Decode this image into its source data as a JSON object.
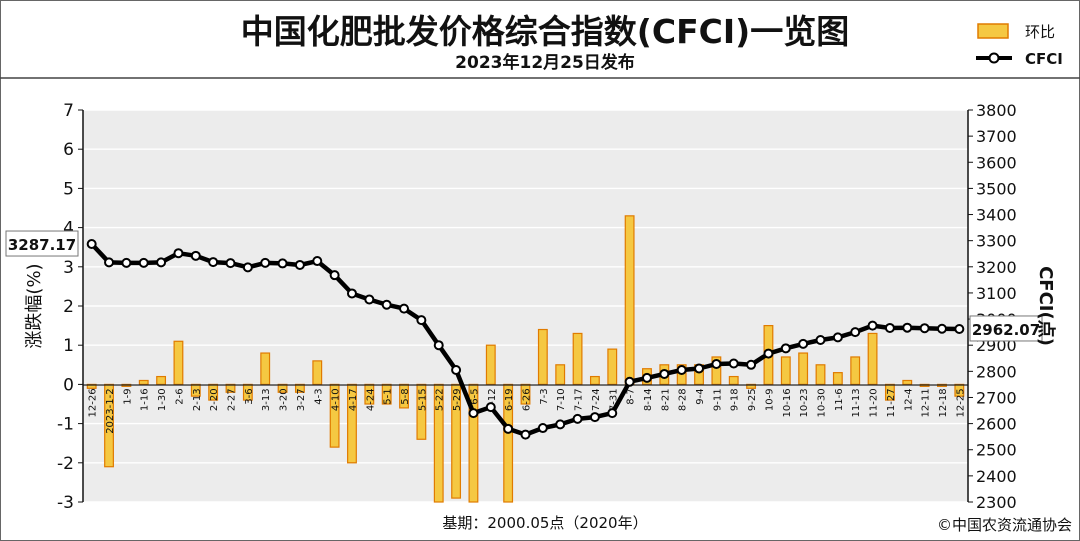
{
  "header": {
    "title": "中国化肥批发价格综合指数(CFCI)一览图",
    "date": "2023年12月25日发布"
  },
  "legend": {
    "bar_label": "环比",
    "line_label": "CFCI"
  },
  "footer": {
    "base_note": "基期：2000.05点（2020年）",
    "copyright": "©中国农资流通协会"
  },
  "colors": {
    "bar_fill": "#f5c842",
    "bar_stroke": "#e07b00",
    "line": "#000000",
    "marker_fill": "#ffffff",
    "plot_bg": "#ececec"
  },
  "chart_data": {
    "type": "bar+line",
    "x_tick_labels": [
      "12-26",
      "2023-1-2",
      "1-9",
      "1-16",
      "1-30",
      "2-6",
      "2-13",
      "2-20",
      "2-27",
      "3-6",
      "3-13",
      "3-20",
      "3-27",
      "4-3",
      "4-10",
      "4-17",
      "4-24",
      "5-1",
      "5-8",
      "5-15",
      "5-22",
      "5-29",
      "6-5",
      "6-12",
      "6-19",
      "6-26",
      "7-3",
      "7-10",
      "7-17",
      "7-24",
      "7-31",
      "8-7",
      "8-14",
      "8-21",
      "8-28",
      "9-4",
      "9-11",
      "9-18",
      "9-25",
      "10-9",
      "10-16",
      "10-23",
      "10-30",
      "11-6",
      "11-13",
      "11-20",
      "11-27",
      "12-4",
      "12-11",
      "12-18",
      "12-25"
    ],
    "ylabel_left": "涨跌幅(%)",
    "ylabel_right": "CFCI(点)",
    "ylim_left": [
      -3,
      7
    ],
    "ylim_right": [
      2300,
      3800
    ],
    "yticks_left": [
      "7",
      "6",
      "5",
      "4",
      "3",
      "2",
      "1",
      "0",
      "-1",
      "-2",
      "-3"
    ],
    "yticks_right": [
      "3800",
      "3700",
      "3600",
      "3500",
      "3400",
      "3300",
      "3200",
      "3100",
      "3000",
      "2900",
      "2800",
      "2700",
      "2600",
      "2500",
      "2400",
      "2300"
    ],
    "grid": true,
    "series": [
      {
        "name": "环比",
        "type": "bar",
        "axis": "left",
        "values": [
          -0.1,
          -2.1,
          -0.05,
          0.1,
          0.2,
          1.1,
          -0.3,
          -0.4,
          -0.2,
          -0.4,
          0.8,
          -0.2,
          -0.2,
          0.6,
          -1.6,
          -2.0,
          -0.5,
          -0.5,
          -0.6,
          -1.4,
          -3.0,
          -2.9,
          -3.0,
          1.0,
          -3.0,
          -0.5,
          1.4,
          0.5,
          1.3,
          0.2,
          0.9,
          4.3,
          0.4,
          0.5,
          0.5,
          0.5,
          0.7,
          0.2,
          -0.1,
          1.5,
          0.7,
          0.8,
          0.5,
          0.3,
          0.7,
          1.3,
          -0.4,
          0.1,
          -0.05,
          -0.05,
          -0.3
        ]
      },
      {
        "name": "CFCI",
        "type": "line",
        "axis": "right",
        "values": [
          3287.17,
          3217,
          3215,
          3215,
          3217,
          3252,
          3242,
          3218,
          3214,
          3198,
          3215,
          3213,
          3207,
          3222,
          3168,
          3098,
          3075,
          3055,
          3040,
          2996,
          2900,
          2805,
          2640,
          2663,
          2580,
          2558,
          2583,
          2597,
          2618,
          2625,
          2640,
          2760,
          2775,
          2790,
          2805,
          2811,
          2828,
          2830,
          2825,
          2868,
          2888,
          2905,
          2920,
          2930,
          2950,
          2975,
          2966,
          2967,
          2965,
          2963,
          2962.07
        ]
      }
    ],
    "annotations": [
      {
        "series": "CFCI",
        "point": "first",
        "text": "3287.17"
      },
      {
        "series": "CFCI",
        "point": "last",
        "text": "2962.07"
      }
    ]
  }
}
